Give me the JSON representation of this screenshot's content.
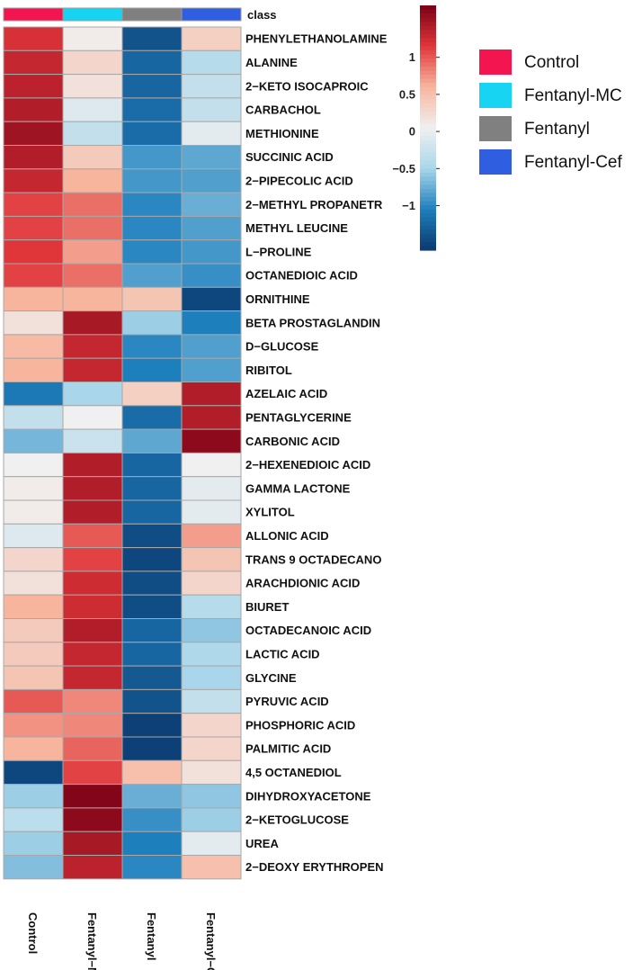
{
  "chart_data": {
    "type": "heatmap",
    "annotation_row_label": "class",
    "columns": [
      "Control",
      "Fentanyl−MC",
      "Fentanyl",
      "Fentanyl−Cef"
    ],
    "column_classes": [
      "Control",
      "Fentanyl-MC",
      "Fentanyl",
      "Fentanyl-Cef"
    ],
    "rows": [
      "PHENYLETHANOLAMINE",
      "ALANINE",
      "2−KETO ISOCAPROIC",
      "CARBACHOL",
      "METHIONINE",
      "SUCCINIC ACID",
      "2−PIPECOLIC ACID",
      "2−METHYL PROPANETR",
      "METHYL LEUCINE",
      "L−PROLINE",
      "OCTANEDIOIC ACID",
      "ORNITHINE",
      "BETA PROSTAGLANDIN",
      "D−GLUCOSE",
      "RIBITOL",
      "AZELAIC ACID",
      "PENTAGLYCERINE",
      "CARBONIC ACID",
      "2−HEXENEDIOIC ACID",
      "GAMMA LACTONE",
      "XYLITOL",
      "ALLONIC ACID",
      "TRANS 9 OCTADECANO",
      "ARACHDIONIC ACID",
      "BIURET",
      "OCTADECANOIC ACID",
      "LACTIC ACID",
      "GLYCINE",
      "PYRUVIC ACID",
      "PHOSPHORIC ACID",
      "PALMITIC ACID",
      "4,5 OCTANEDIOL",
      "DIHYDROXYACETONE",
      "2−KETOGLUCOSE",
      "UREA",
      "2−DEOXY ERYTHROPEN"
    ],
    "values": [
      [
        1.2,
        0.1,
        -1.4,
        0.35
      ],
      [
        1.3,
        0.3,
        -1.25,
        -0.4
      ],
      [
        1.35,
        0.2,
        -1.25,
        -0.3
      ],
      [
        1.4,
        -0.1,
        -1.2,
        -0.3
      ],
      [
        1.5,
        -0.3,
        -1.2,
        -0.05
      ],
      [
        1.4,
        0.4,
        -0.9,
        -0.8
      ],
      [
        1.3,
        0.6,
        -0.9,
        -0.85
      ],
      [
        1.1,
        0.9,
        -1.0,
        -0.75
      ],
      [
        1.1,
        0.9,
        -1.0,
        -0.85
      ],
      [
        1.15,
        0.7,
        -1.0,
        -0.9
      ],
      [
        1.1,
        0.9,
        -0.85,
        -0.95
      ],
      [
        0.6,
        0.6,
        0.45,
        -1.5
      ],
      [
        0.2,
        1.45,
        -0.55,
        -1.05
      ],
      [
        0.55,
        1.3,
        -1.0,
        -0.85
      ],
      [
        0.6,
        1.3,
        -1.05,
        -0.85
      ],
      [
        -1.1,
        -0.5,
        0.35,
        1.4
      ],
      [
        -0.3,
        0.05,
        -1.2,
        1.4
      ],
      [
        -0.7,
        -0.25,
        -0.8,
        1.6
      ],
      [
        0.05,
        1.4,
        -1.25,
        0.05
      ],
      [
        0.1,
        1.4,
        -1.25,
        -0.05
      ],
      [
        0.1,
        1.4,
        -1.25,
        -0.05
      ],
      [
        -0.1,
        1.0,
        -1.45,
        0.7
      ],
      [
        0.3,
        1.1,
        -1.5,
        0.45
      ],
      [
        0.2,
        1.25,
        -1.45,
        0.3
      ],
      [
        0.6,
        1.25,
        -1.45,
        -0.4
      ],
      [
        0.4,
        1.4,
        -1.25,
        -0.6
      ],
      [
        0.4,
        1.3,
        -1.25,
        -0.45
      ],
      [
        0.45,
        1.3,
        -1.35,
        -0.5
      ],
      [
        1.0,
        0.8,
        -1.4,
        -0.3
      ],
      [
        0.75,
        0.8,
        -1.55,
        0.3
      ],
      [
        0.6,
        0.95,
        -1.55,
        0.3
      ],
      [
        -1.5,
        1.1,
        0.5,
        0.2
      ],
      [
        -0.55,
        1.65,
        -0.75,
        -0.6
      ],
      [
        -0.35,
        1.6,
        -0.95,
        -0.55
      ],
      [
        -0.55,
        1.45,
        -1.05,
        -0.05
      ],
      [
        -0.65,
        1.35,
        -1.0,
        0.5
      ]
    ],
    "color_scale": {
      "ticks": [
        1,
        0.5,
        0,
        -0.5,
        -1
      ],
      "tick_labels": [
        "1",
        "0.5",
        "0",
        "−0.5",
        "−1"
      ],
      "range": [
        -1.6,
        1.7
      ],
      "colors": [
        "#0b3a6f",
        "#1e7fbd",
        "#a9d6ea",
        "#f0f0f0",
        "#f7b59e",
        "#e0363a",
        "#7a0016"
      ]
    },
    "legend": {
      "items": [
        {
          "label": "Control",
          "color": "#f2154f"
        },
        {
          "label": "Fentanyl-MC",
          "color": "#16d4f2"
        },
        {
          "label": "Fentanyl",
          "color": "#808080"
        },
        {
          "label": "Fentanyl-Cef",
          "color": "#2f5fe0"
        }
      ]
    },
    "grid": true
  }
}
